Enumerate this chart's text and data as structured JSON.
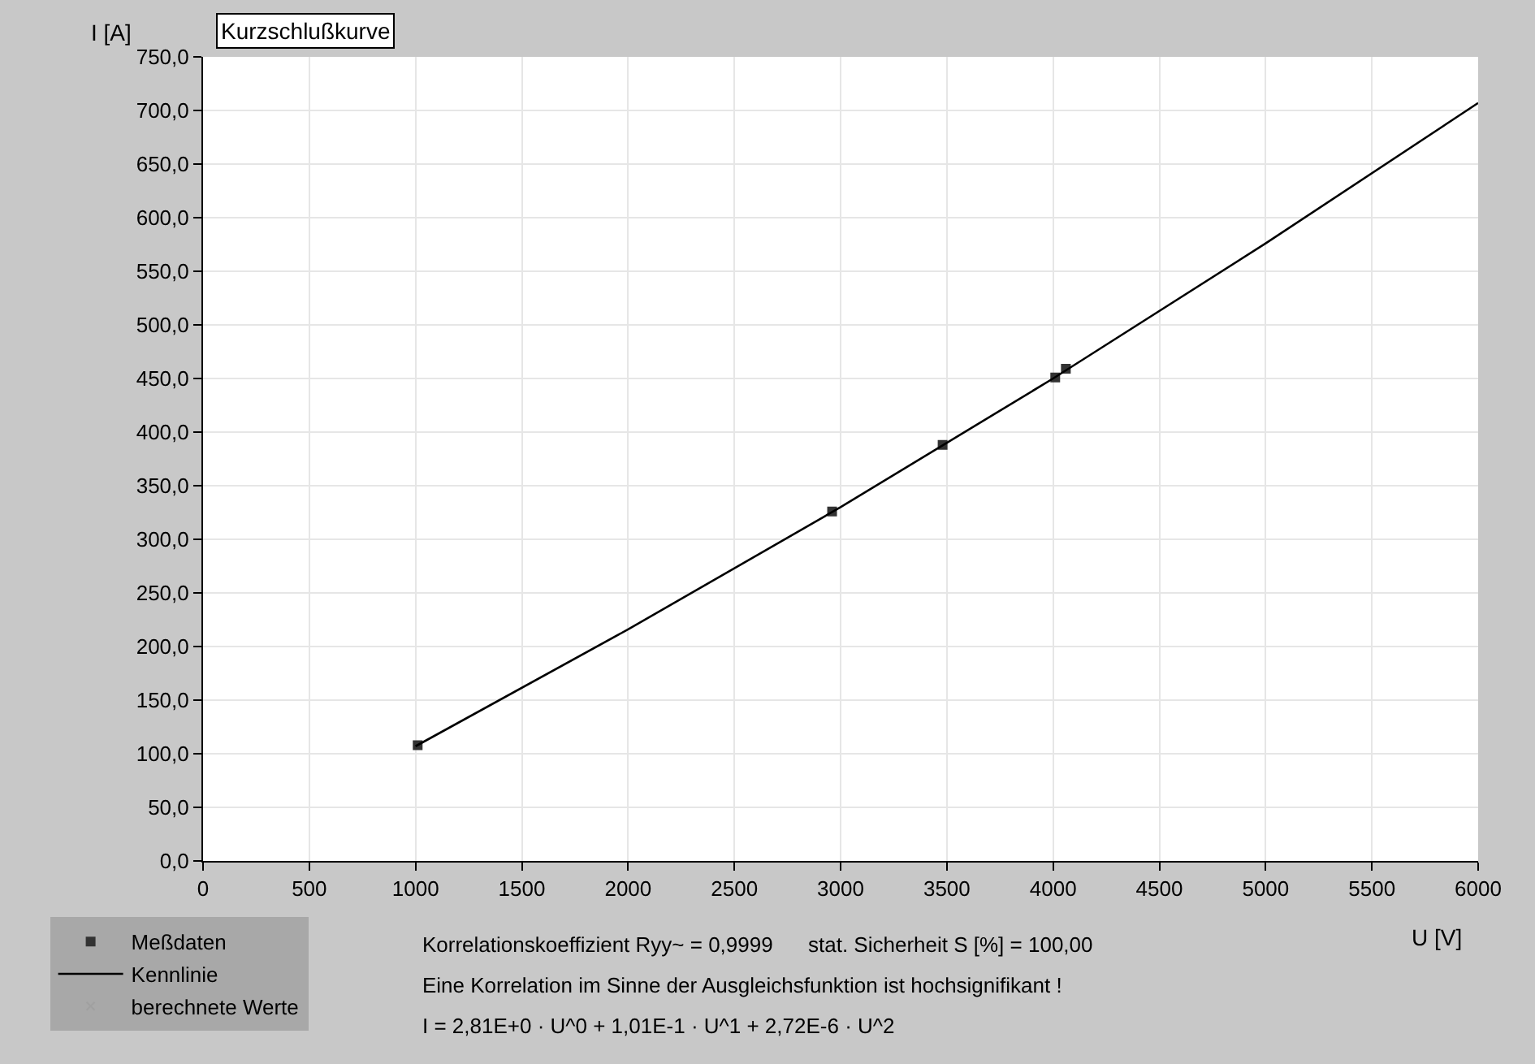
{
  "chart_data": {
    "type": "scatter",
    "title": "Kurzschlußkurve",
    "xlabel": "U [V]",
    "ylabel": "I [A]",
    "xlim": [
      0,
      6000
    ],
    "xticks": [
      0,
      500,
      1000,
      1500,
      2000,
      2500,
      3000,
      3500,
      4000,
      4500,
      5000,
      5500,
      6000
    ],
    "ylim": [
      0,
      750
    ],
    "yticks": [
      {
        "value": 0,
        "label": "0,0"
      },
      {
        "value": 50,
        "label": "50,0"
      },
      {
        "value": 100,
        "label": "100,0"
      },
      {
        "value": 150,
        "label": "150,0"
      },
      {
        "value": 200,
        "label": "200,0"
      },
      {
        "value": 250,
        "label": "250,0"
      },
      {
        "value": 300,
        "label": "300,0"
      },
      {
        "value": 350,
        "label": "350,0"
      },
      {
        "value": 400,
        "label": "400,0"
      },
      {
        "value": 450,
        "label": "450,0"
      },
      {
        "value": 500,
        "label": "500,0"
      },
      {
        "value": 550,
        "label": "550,0"
      },
      {
        "value": 600,
        "label": "600,0"
      },
      {
        "value": 650,
        "label": "650,0"
      },
      {
        "value": 700,
        "label": "700,0"
      },
      {
        "value": 750,
        "label": "750,0"
      }
    ],
    "grid": true,
    "legend": "bottom left",
    "series": [
      {
        "name": "Meßdaten",
        "marker": "square",
        "color": "#333333",
        "x": [
          1010,
          2960,
          3480,
          4010,
          4060
        ],
        "values": [
          108,
          326,
          388,
          451,
          459
        ]
      },
      {
        "name": "Kennlinie",
        "type": "line",
        "marker": "none",
        "color": "#000000",
        "x": [
          1000,
          2000,
          3000,
          4000,
          5000,
          6000
        ],
        "values": [
          107,
          216,
          330,
          450,
          576,
          707
        ]
      },
      {
        "name": "berechnete Werte",
        "marker": "cross",
        "color": "#a0a0a0"
      }
    ],
    "annotations": [
      "Korrelationskoeffizient Ryy~ = 0,9999      stat. Sicherheit S [%] = 100,00",
      "Eine Korrelation im Sinne der Ausgleichsfunktion ist hochsignifikant !",
      "I = 2,81E+0 · U^0 + 1,01E-1 · U^1 + 2,72E-6 · U^2"
    ]
  }
}
